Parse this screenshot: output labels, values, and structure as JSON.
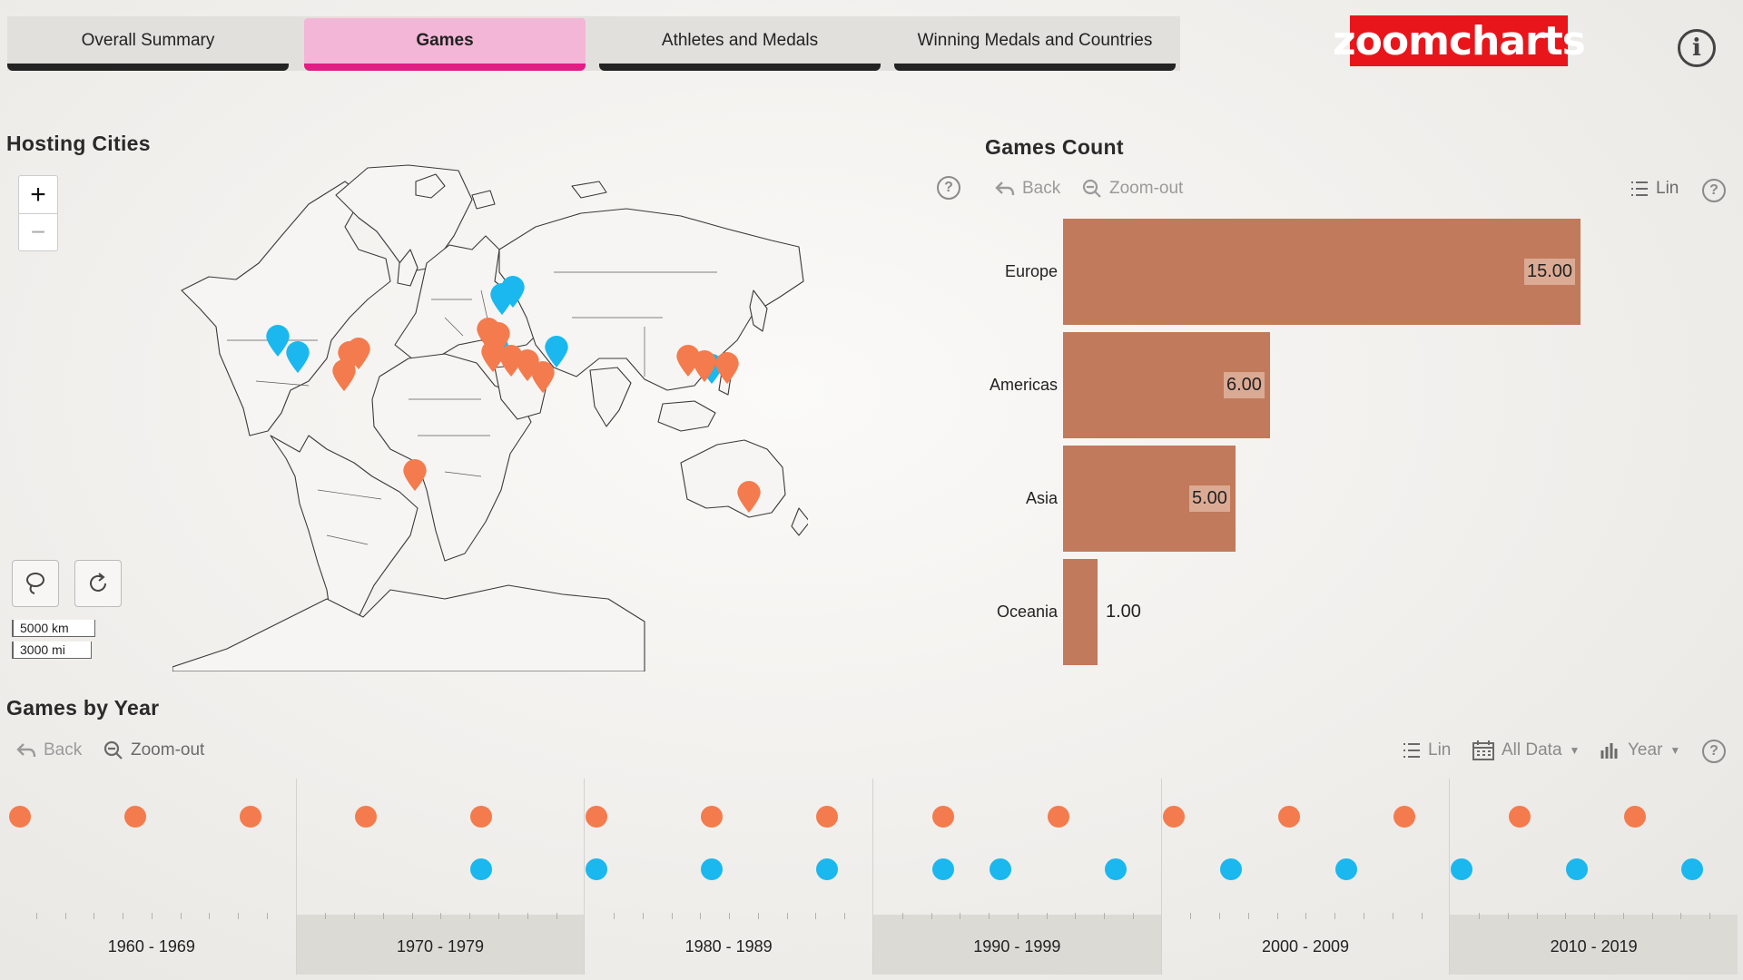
{
  "tabs": [
    {
      "label": "Overall Summary",
      "active": false
    },
    {
      "label": "Games",
      "active": true
    },
    {
      "label": "Athletes and Medals",
      "active": false
    },
    {
      "label": "Winning Medals and Countries",
      "active": false
    }
  ],
  "logo": {
    "text": "zoomcharts",
    "color": "#e8151b"
  },
  "info_icon": "info-icon",
  "map": {
    "title": "Hosting Cities",
    "zoom_in": "+",
    "zoom_out": "−",
    "scale_km": "5000 km",
    "scale_mi": "3000 mi",
    "tools": [
      "lasso-icon",
      "reset-icon"
    ],
    "marker_colors": {
      "summer": "#f47b4d",
      "winter": "#1ab8ef"
    }
  },
  "games_count": {
    "title": "Games Count",
    "toolbar": {
      "back": "Back",
      "zoom_out": "Zoom-out",
      "scale": "Lin"
    },
    "chart_data": {
      "type": "bar",
      "orientation": "horizontal",
      "categories": [
        "Europe",
        "Americas",
        "Asia",
        "Oceania"
      ],
      "values": [
        15,
        6,
        5,
        1
      ],
      "value_labels": [
        "15.00",
        "6.00",
        "5.00",
        "1.00"
      ],
      "bar_color": "#c17a5b",
      "xlim": [
        0,
        15
      ]
    }
  },
  "games_by_year": {
    "title": "Games by Year",
    "toolbar": {
      "back": "Back",
      "zoom_out": "Zoom-out",
      "scale": "Lin",
      "range": "All Data",
      "period": "Year"
    },
    "chart_data": {
      "type": "scatter",
      "categories": [
        "1960 - 1969",
        "1970 - 1979",
        "1980 - 1989",
        "1990 - 1999",
        "2000 - 2009",
        "2010 - 2019"
      ],
      "x_range": [
        1960,
        2019
      ],
      "series": [
        {
          "color": "#f47b4d",
          "x": [
            1960,
            1964,
            1968,
            1972,
            1976,
            1980,
            1984,
            1988,
            1992,
            1996,
            2000,
            2004,
            2008,
            2012,
            2016
          ]
        },
        {
          "color": "#1ab8ef",
          "x": [
            1976,
            1980,
            1984,
            1988,
            1992,
            1994,
            1998,
            2002,
            2006,
            2010,
            2014,
            2018
          ]
        }
      ]
    }
  }
}
